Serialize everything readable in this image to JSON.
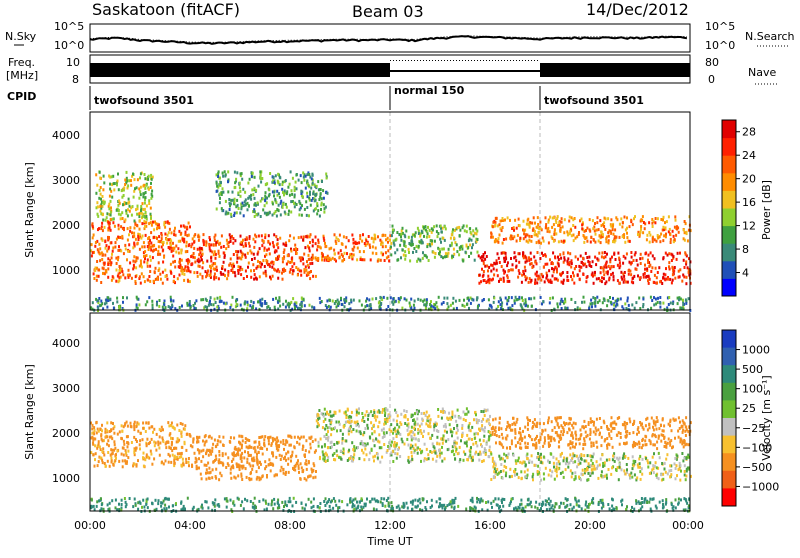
{
  "header": {
    "station": "Saskatoon (fitACF)",
    "beam": "Beam 03",
    "date": "14/Dec/2012"
  },
  "strip_labels": {
    "nsky": "N.Sky",
    "nsearch": "N.Search",
    "freq_line1": "Freq.",
    "freq_line2": "[MHz]",
    "nave": "Nave",
    "cpid": "CPID"
  },
  "colors": {
    "power": [
      "#0000ff",
      "#2050b8",
      "#3a8a78",
      "#3fa040",
      "#8fd030",
      "#f0c020",
      "#ff8c00",
      "#ff5a00",
      "#ff2000",
      "#e00000"
    ],
    "velocity": [
      "#1a3cc0",
      "#3060b0",
      "#2e8a7a",
      "#4aa040",
      "#70c030",
      "#c0c0c0",
      "#f7c030",
      "#f59020",
      "#f06018",
      "#ff0000"
    ],
    "grid_dash": "#bbbbbb",
    "frame": "#000000"
  },
  "chart_data": [
    {
      "type": "line",
      "name": "nsky-strip",
      "ylabel": "N.Sky",
      "y_ticks": [
        "10^5",
        "10^0"
      ],
      "right_ticks": [
        "10^5",
        "10^0"
      ],
      "right_label": "N.Search",
      "xlim_hours": [
        0,
        24
      ],
      "y_scale": "log",
      "ylim": [
        1,
        100000
      ],
      "series": [
        {
          "x": [
            0,
            1,
            2,
            3,
            4,
            5,
            6,
            7,
            8,
            9,
            10,
            11,
            12,
            13,
            14,
            15,
            16,
            17,
            18,
            19,
            20,
            21,
            22,
            23,
            24
          ],
          "y": [
            150,
            300,
            100,
            60,
            30,
            25,
            35,
            60,
            70,
            90,
            120,
            110,
            140,
            100,
            300,
            600,
            450,
            300,
            200,
            300,
            400,
            350,
            300,
            500,
            400
          ]
        }
      ]
    },
    {
      "type": "line",
      "name": "freq-strip",
      "ylabel": "Freq. [MHz]",
      "y_ticks": [
        "10",
        "8"
      ],
      "right_ticks": [
        "80",
        "0"
      ],
      "right_label": "Nave",
      "xlim_hours": [
        0,
        24
      ],
      "segments": [
        {
          "start": 0,
          "end": 12,
          "mode": "alternating",
          "low_mhz": 8.6,
          "high_mhz": 10.0
        },
        {
          "start": 12,
          "end": 18,
          "mode": "steady",
          "mhz": 9.2,
          "nave": 75
        },
        {
          "start": 18,
          "end": 24,
          "mode": "alternating",
          "low_mhz": 8.6,
          "high_mhz": 10.0
        }
      ]
    },
    {
      "type": "table",
      "name": "cpid-strip",
      "ylabel": "CPID",
      "segments": [
        {
          "start": 0,
          "end": 12,
          "label": "twofsound 3501"
        },
        {
          "start": 12,
          "end": 18,
          "label": "normal 150"
        },
        {
          "start": 18,
          "end": 24,
          "label": "twofsound 3501"
        }
      ]
    },
    {
      "type": "heatmap",
      "name": "power-panel",
      "ylabel": "Slant Range [km]",
      "ylim": [
        180,
        4600
      ],
      "y_ticks": [
        1000,
        2000,
        3000,
        4000
      ],
      "xlim_hours": [
        0,
        24
      ],
      "colorbar": {
        "label": "Power [dB]",
        "range": [
          0,
          30
        ],
        "ticks": [
          4,
          8,
          12,
          16,
          20,
          24,
          28
        ]
      },
      "echo_regions": [
        {
          "t0": 0.0,
          "t1": 4.0,
          "r0": 800,
          "r1": 2200,
          "value": 22
        },
        {
          "t0": 0.2,
          "t1": 2.5,
          "r0": 2200,
          "r1": 3300,
          "value": 14
        },
        {
          "t0": 4.0,
          "t1": 9.0,
          "r0": 900,
          "r1": 1900,
          "value": 24
        },
        {
          "t0": 5.0,
          "t1": 9.5,
          "r0": 2300,
          "r1": 3300,
          "value": 10
        },
        {
          "t0": 9.0,
          "t1": 12.0,
          "r0": 1300,
          "r1": 1900,
          "value": 22
        },
        {
          "t0": 12.0,
          "t1": 15.5,
          "r0": 1300,
          "r1": 2100,
          "value": 12
        },
        {
          "t0": 15.5,
          "t1": 24.0,
          "r0": 800,
          "r1": 1500,
          "value": 26
        },
        {
          "t0": 16.0,
          "t1": 24.0,
          "r0": 1700,
          "r1": 2300,
          "value": 20
        },
        {
          "t0": 0.0,
          "t1": 24.0,
          "r0": 200,
          "r1": 500,
          "value": 8
        }
      ]
    },
    {
      "type": "heatmap",
      "name": "velocity-panel",
      "ylabel": "Slant Range [km]",
      "ylim": [
        180,
        4600
      ],
      "y_ticks": [
        1000,
        2000,
        3000,
        4000
      ],
      "xlim_hours": [
        0,
        24
      ],
      "xlabel": "Time UT",
      "x_ticks": [
        "00:00",
        "04:00",
        "08:00",
        "12:00",
        "16:00",
        "20:00",
        "00:00"
      ],
      "colorbar": {
        "label": "Velocity [m s⁻¹]",
        "ticks": [
          "1000",
          "500",
          "100",
          "25",
          "−25",
          "−100",
          "−500",
          "−1000"
        ]
      },
      "echo_regions": [
        {
          "t0": 0.0,
          "t1": 4.0,
          "r0": 1200,
          "r1": 2200,
          "value": -150
        },
        {
          "t0": 4.0,
          "t1": 9.0,
          "r0": 900,
          "r1": 1900,
          "value": -200
        },
        {
          "t0": 9.0,
          "t1": 12.0,
          "r0": 1300,
          "r1": 2500,
          "value": 0
        },
        {
          "t0": 12.0,
          "t1": 16.0,
          "r0": 1300,
          "r1": 2500,
          "value": 0
        },
        {
          "t0": 16.0,
          "t1": 24.0,
          "r0": 900,
          "r1": 1500,
          "value": 0
        },
        {
          "t0": 16.0,
          "t1": 24.0,
          "r0": 1600,
          "r1": 2300,
          "value": -200
        },
        {
          "t0": 0.0,
          "t1": 24.0,
          "r0": 200,
          "r1": 500,
          "value": 150
        }
      ]
    }
  ]
}
